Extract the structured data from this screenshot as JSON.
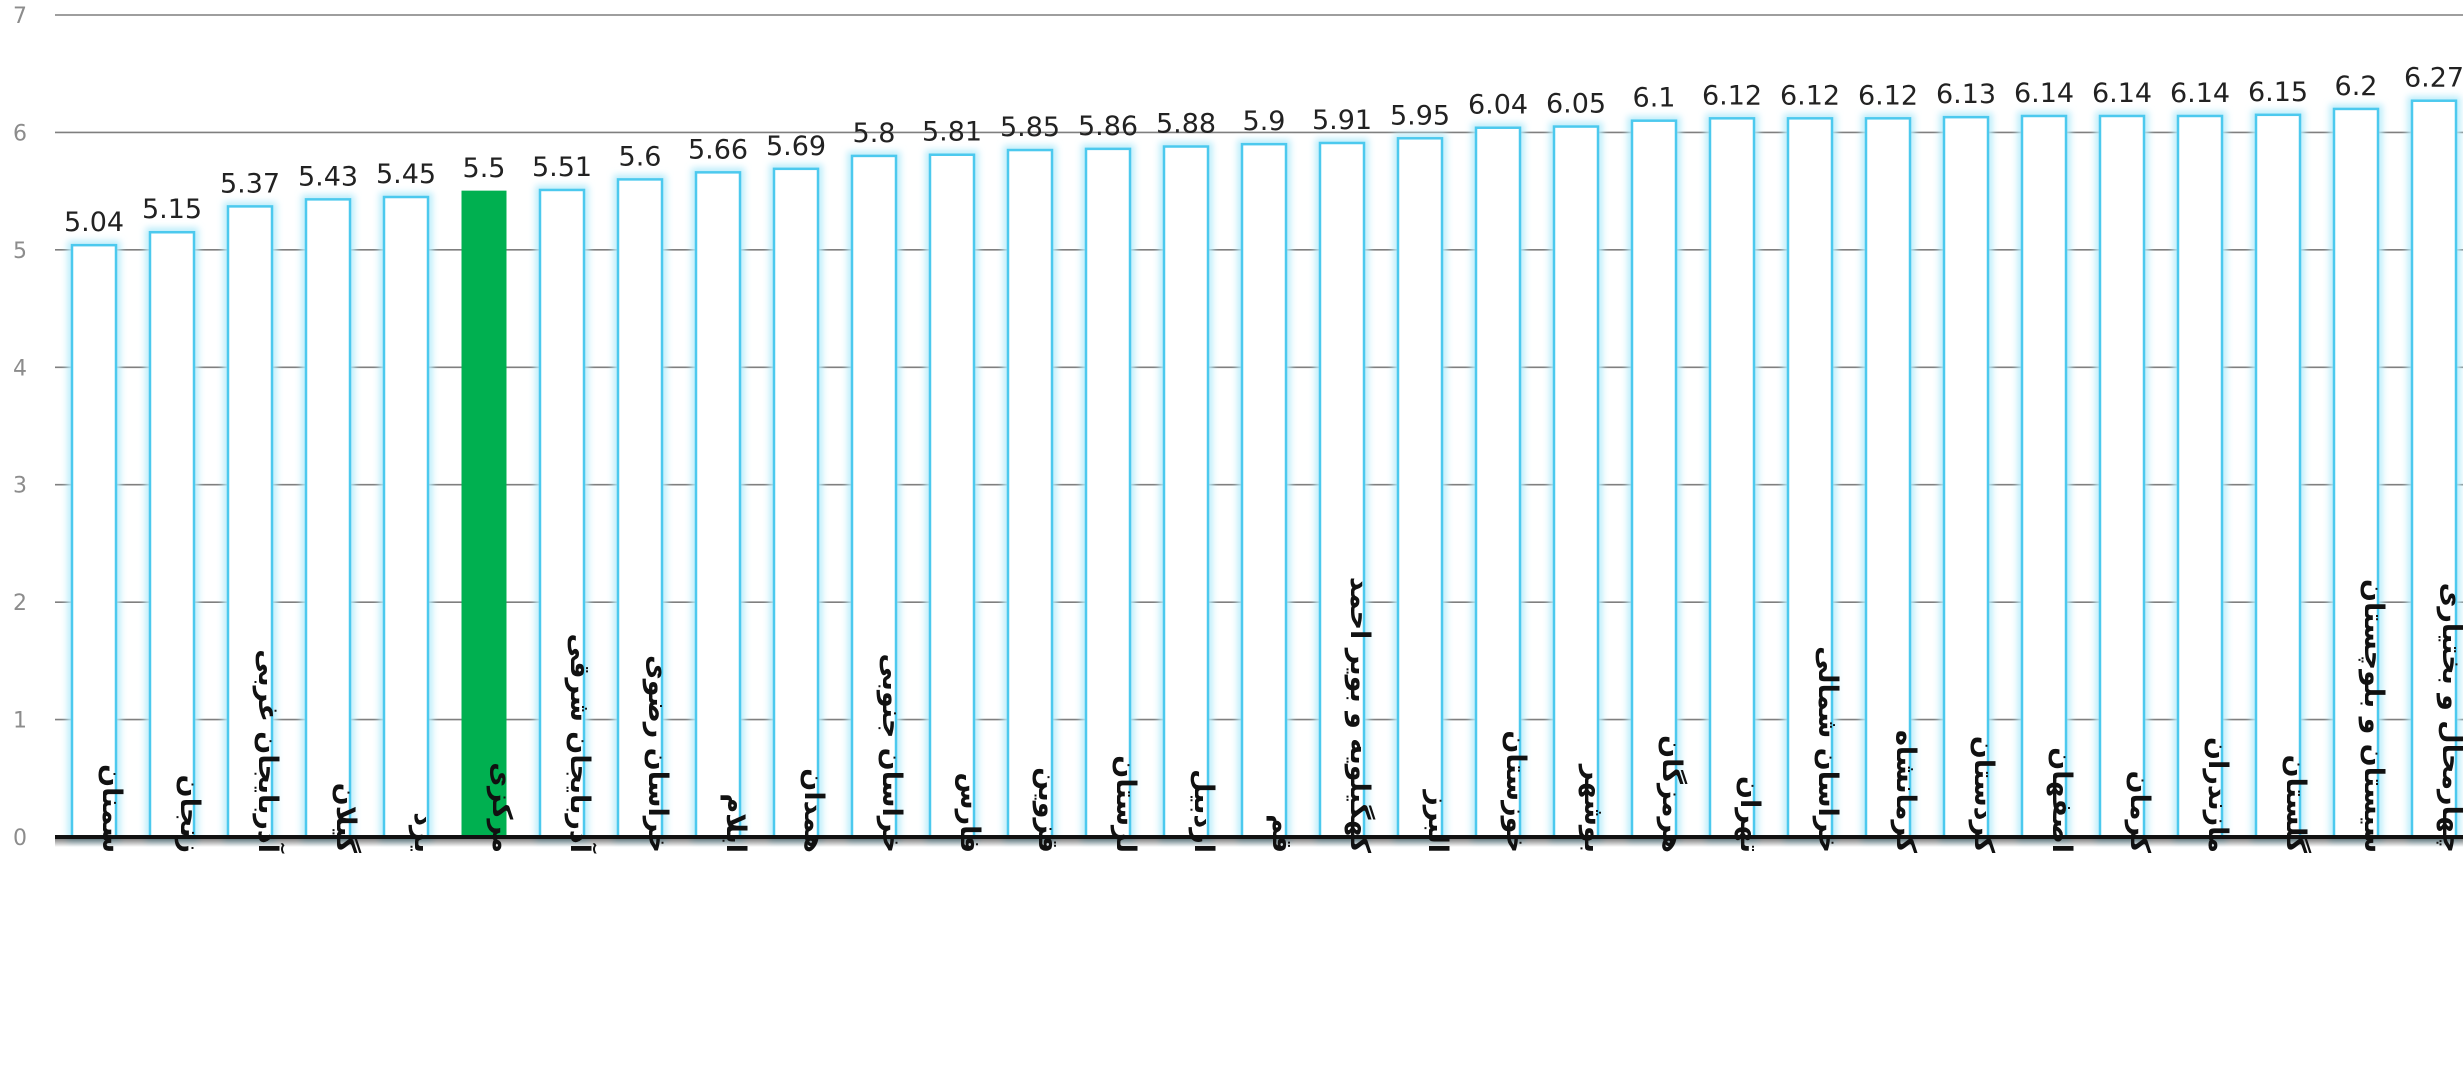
{
  "chart_data": {
    "type": "bar",
    "categories": [
      "سمنان",
      "زنجان",
      "آذربایجان غربی",
      "گیلان",
      "یزد",
      "مرکزی",
      "آذربایجان شرقی",
      "خراسان رضوی",
      "ایلام",
      "همدان",
      "خراسان جنوبی",
      "فارس",
      "قزوین",
      "لرستان",
      "اردبیل",
      "قم",
      "کهگیلویه و بویر احمد",
      "البرز",
      "خوزستان",
      "بوشهر",
      "هرمزگان",
      "تهران",
      "خراسان شمالی",
      "کرمانشاه",
      "کردستان",
      "اصفهان",
      "کرمان",
      "مازندران",
      "گلستان",
      "سیستان و بلوچستان",
      "چهارمحال و بختیاری"
    ],
    "values": [
      5.04,
      5.15,
      5.37,
      5.43,
      5.45,
      5.5,
      5.51,
      5.6,
      5.66,
      5.69,
      5.8,
      5.81,
      5.85,
      5.86,
      5.88,
      5.9,
      5.91,
      5.95,
      6.04,
      6.05,
      6.1,
      6.12,
      6.12,
      6.12,
      6.13,
      6.14,
      6.14,
      6.14,
      6.15,
      6.2,
      6.27
    ],
    "data_labels": [
      "5.04",
      "5.15",
      "5.37",
      "5.43",
      "5.45",
      "5.5",
      "5.51",
      "5.6",
      "5.66",
      "5.69",
      "5.8",
      "5.81",
      "5.85",
      "5.86",
      "5.88",
      "5.9",
      "5.91",
      "5.95",
      "6.04",
      "6.05",
      "6.1",
      "6.12",
      "6.12",
      "6.12",
      "6.13",
      "6.14",
      "6.14",
      "6.14",
      "6.15",
      "6.2",
      "6.27"
    ],
    "highlight_index": 5,
    "ylim": [
      0,
      7
    ],
    "yticks": [
      0,
      1,
      2,
      3,
      4,
      5,
      6,
      7
    ],
    "grid": true,
    "title": "",
    "xlabel": "",
    "ylabel": "",
    "colors": {
      "bar_fill": "#ffffff",
      "bar_stroke": "#4cc9ee",
      "bar_glow": "#b9ecfa",
      "highlight_fill": "#00b050",
      "gridline": "#7f7f7f",
      "axis": "#111111",
      "tick_label": "#8c8c8c"
    }
  }
}
